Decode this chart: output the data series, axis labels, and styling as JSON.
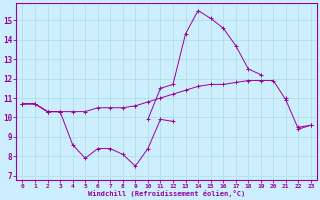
{
  "xlabel": "Windchill (Refroidissement éolien,°C)",
  "bg_color": "#cceeff",
  "line_color": "#990099",
  "x": [
    0,
    1,
    2,
    3,
    4,
    5,
    6,
    7,
    8,
    9,
    10,
    11,
    12,
    13,
    14,
    15,
    16,
    17,
    18,
    19,
    20,
    21,
    22,
    23
  ],
  "line1": [
    10.7,
    10.7,
    10.3,
    10.3,
    null,
    null,
    null,
    null,
    null,
    null,
    9.9,
    11.5,
    11.7,
    14.3,
    15.5,
    15.1,
    14.6,
    13.7,
    12.5,
    12.2,
    null,
    11.0,
    null,
    null
  ],
  "line2": [
    10.7,
    10.7,
    10.3,
    10.3,
    8.6,
    7.9,
    8.4,
    8.4,
    8.1,
    7.5,
    8.4,
    9.9,
    9.8,
    null,
    null,
    null,
    null,
    null,
    null,
    null,
    null,
    null,
    9.5,
    9.6
  ],
  "line3": [
    10.7,
    10.7,
    10.3,
    10.3,
    10.3,
    10.3,
    10.5,
    10.5,
    10.5,
    10.6,
    10.8,
    11.0,
    11.2,
    11.4,
    11.6,
    11.7,
    11.7,
    11.8,
    11.9,
    11.9,
    11.9,
    10.9,
    9.4,
    9.6
  ],
  "xlim": [
    -0.5,
    23.5
  ],
  "ylim": [
    6.8,
    15.9
  ],
  "yticks": [
    7,
    8,
    9,
    10,
    11,
    12,
    13,
    14,
    15
  ],
  "xticks": [
    0,
    1,
    2,
    3,
    4,
    5,
    6,
    7,
    8,
    9,
    10,
    11,
    12,
    13,
    14,
    15,
    16,
    17,
    18,
    19,
    20,
    21,
    22,
    23
  ],
  "xtick_labels": [
    "0",
    "1",
    "2",
    "3",
    "4",
    "5",
    "6",
    "7",
    "8",
    "9",
    "10",
    "11",
    "12",
    "13",
    "14",
    "15",
    "16",
    "17",
    "18",
    "19",
    "20",
    "21",
    "22",
    "23"
  ]
}
